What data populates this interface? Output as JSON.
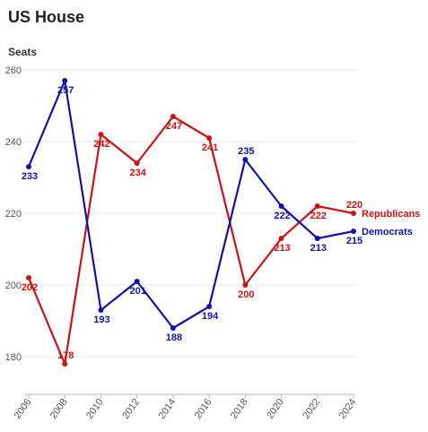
{
  "chart_data": {
    "type": "line",
    "title": "US House",
    "ylabel": "Seats",
    "xlabel": "",
    "x": [
      "2006",
      "2008",
      "2010",
      "2012",
      "2014",
      "2016",
      "2018",
      "2020",
      "2022",
      "2024"
    ],
    "ylim": [
      170,
      262
    ],
    "yticks": [
      180,
      200,
      220,
      240,
      260
    ],
    "grid": true,
    "legend": "right",
    "series": [
      {
        "name": "Republicans",
        "color": "#cc1111",
        "values": [
          202,
          178,
          242,
          234,
          247,
          241,
          200,
          213,
          222,
          220
        ]
      },
      {
        "name": "Democrats",
        "color": "#1111aa",
        "values": [
          233,
          257,
          193,
          201,
          188,
          194,
          235,
          222,
          213,
          215
        ]
      }
    ]
  }
}
